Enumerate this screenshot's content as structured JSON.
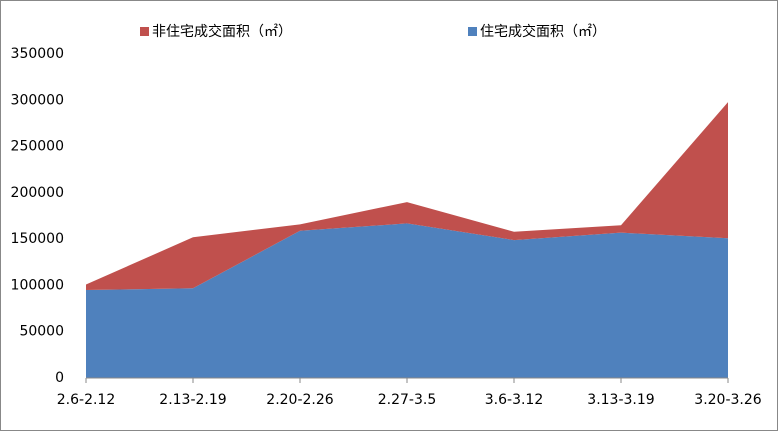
{
  "chart_data": {
    "type": "stacked_area",
    "categories": [
      "2.6-2.12",
      "2.13-2.19",
      "2.20-2.26",
      "2.27-3.5",
      "3.6-3.12",
      "3.13-3.19",
      "3.20-3.26"
    ],
    "series": [
      {
        "name": "住宅成交面积（㎡）",
        "color": "#4f81bd",
        "values": [
          95000,
          97000,
          159000,
          167000,
          149000,
          157000,
          151000
        ]
      },
      {
        "name": "非住宅成交面积（㎡）",
        "color": "#c0504d",
        "values": [
          6000,
          55000,
          7000,
          23000,
          9000,
          8000,
          147000
        ]
      }
    ],
    "ylim": [
      0,
      350000
    ],
    "yticks": [
      0,
      50000,
      100000,
      150000,
      200000,
      250000,
      300000,
      350000
    ],
    "legend": "top"
  }
}
